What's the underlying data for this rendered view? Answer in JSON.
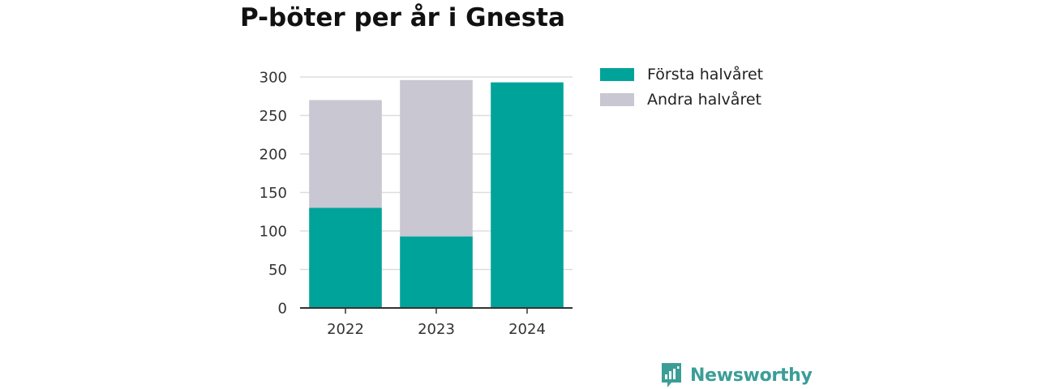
{
  "title": "P-böter per år i Gnesta",
  "colors": {
    "first_half": "#00a39a",
    "second_half": "#c8c7d2",
    "gridline": "#dddddd",
    "axis": "#333333",
    "brand": "#3a9e97"
  },
  "legend": {
    "placement": "right",
    "items": [
      {
        "label": "Första halvåret",
        "color_key": "first_half"
      },
      {
        "label": "Andra halvåret",
        "color_key": "second_half"
      }
    ]
  },
  "chart_data": {
    "type": "bar",
    "stacked": true,
    "title": "P-böter per år i Gnesta",
    "xlabel": "",
    "ylabel": "",
    "categories": [
      "2022",
      "2023",
      "2024"
    ],
    "series": [
      {
        "name": "Första halvåret",
        "values": [
          130,
          93,
          293
        ]
      },
      {
        "name": "Andra halvåret",
        "values": [
          140,
          203,
          null
        ]
      }
    ],
    "ylim": [
      0,
      300
    ],
    "yticks": [
      0,
      50,
      100,
      150,
      200,
      250,
      300
    ],
    "grid": "horizontal"
  },
  "brand": {
    "name": "Newsworthy",
    "icon": "bar-chart-speech-bubble-icon"
  }
}
